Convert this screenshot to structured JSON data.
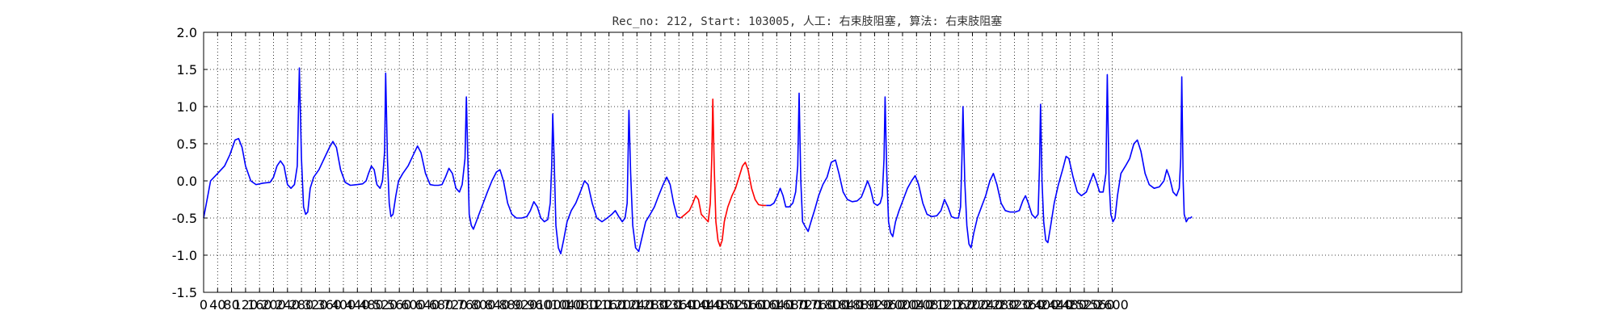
{
  "chart_data": {
    "type": "line",
    "title": "Rec_no: 212, Start: 103005, 人工: 右束肢阻塞, 算法: 右束肢阻塞",
    "xlabel": "",
    "ylabel": "",
    "xlim": [
      0,
      3600
    ],
    "ylim": [
      -1.5,
      2.0
    ],
    "grid": true,
    "yticks": [
      "2.0",
      "1.5",
      "1.0",
      "0.5",
      "0.0",
      "-0.5",
      "-1.0",
      "-1.5"
    ],
    "xtick_labels": [
      "0",
      "40",
      "80",
      "120",
      "160",
      "200",
      "240",
      "280",
      "320",
      "360",
      "400",
      "440",
      "480",
      "520",
      "560",
      "600",
      "640",
      "680",
      "720",
      "760",
      "800",
      "840",
      "880",
      "920",
      "960",
      "1000",
      "1040",
      "1080",
      "1120",
      "1160",
      "1200",
      "1240",
      "1280",
      "1320",
      "1360",
      "1400",
      "1440",
      "1480",
      "1520",
      "1560",
      "1600",
      "1640",
      "1680",
      "1720",
      "1760",
      "1800",
      "1840",
      "1880",
      "1920",
      "1960",
      "2000",
      "2040",
      "2080",
      "2120",
      "2160",
      "2200",
      "2240",
      "2280",
      "2320",
      "2360",
      "2400",
      "2440",
      "2480",
      "2520",
      "2560",
      "2600"
    ],
    "colors": {
      "normal": "#0000ff",
      "highlight": "#ff0000"
    },
    "series": [
      {
        "color": "blue",
        "points": [
          [
            0,
            -0.5
          ],
          [
            12,
            -0.2
          ],
          [
            20,
            0.0
          ],
          [
            40,
            0.1
          ],
          [
            60,
            0.2
          ],
          [
            75,
            0.35
          ],
          [
            90,
            0.55
          ],
          [
            100,
            0.57
          ],
          [
            110,
            0.45
          ],
          [
            120,
            0.2
          ],
          [
            135,
            0.0
          ],
          [
            150,
            -0.05
          ],
          [
            170,
            -0.03
          ],
          [
            190,
            -0.02
          ],
          [
            200,
            0.05
          ],
          [
            210,
            0.2
          ],
          [
            220,
            0.27
          ],
          [
            230,
            0.2
          ],
          [
            240,
            -0.05
          ],
          [
            250,
            -0.1
          ],
          [
            260,
            -0.05
          ],
          [
            268,
            0.2
          ],
          [
            274,
            1.52
          ],
          [
            280,
            0.3
          ],
          [
            286,
            -0.35
          ],
          [
            292,
            -0.45
          ],
          [
            298,
            -0.42
          ],
          [
            305,
            -0.1
          ],
          [
            315,
            0.05
          ],
          [
            330,
            0.15
          ],
          [
            345,
            0.3
          ],
          [
            360,
            0.45
          ],
          [
            370,
            0.53
          ],
          [
            380,
            0.45
          ],
          [
            392,
            0.15
          ],
          [
            405,
            -0.02
          ],
          [
            420,
            -0.06
          ],
          [
            440,
            -0.05
          ],
          [
            455,
            -0.04
          ],
          [
            465,
            0.0
          ],
          [
            472,
            0.1
          ],
          [
            480,
            0.2
          ],
          [
            488,
            0.15
          ],
          [
            496,
            -0.05
          ],
          [
            505,
            -0.1
          ],
          [
            512,
            0.0
          ],
          [
            518,
            0.4
          ],
          [
            521,
            1.45
          ],
          [
            526,
            0.3
          ],
          [
            531,
            -0.3
          ],
          [
            536,
            -0.48
          ],
          [
            542,
            -0.45
          ],
          [
            550,
            -0.2
          ],
          [
            558,
            0.0
          ],
          [
            570,
            0.1
          ],
          [
            585,
            0.2
          ],
          [
            600,
            0.35
          ],
          [
            612,
            0.47
          ],
          [
            622,
            0.38
          ],
          [
            635,
            0.1
          ],
          [
            648,
            -0.05
          ],
          [
            660,
            -0.06
          ],
          [
            672,
            -0.06
          ],
          [
            682,
            -0.05
          ],
          [
            692,
            0.05
          ],
          [
            702,
            0.17
          ],
          [
            712,
            0.1
          ],
          [
            722,
            -0.1
          ],
          [
            732,
            -0.15
          ],
          [
            740,
            -0.05
          ],
          [
            748,
            0.3
          ],
          [
            752,
            1.13
          ],
          [
            756,
            0.3
          ],
          [
            760,
            -0.45
          ],
          [
            766,
            -0.6
          ],
          [
            772,
            -0.65
          ],
          [
            780,
            -0.55
          ],
          [
            788,
            -0.45
          ],
          [
            800,
            -0.3
          ],
          [
            812,
            -0.15
          ],
          [
            825,
            0.0
          ],
          [
            838,
            0.12
          ],
          [
            848,
            0.15
          ],
          [
            858,
            0.0
          ],
          [
            870,
            -0.3
          ],
          [
            882,
            -0.45
          ],
          [
            895,
            -0.5
          ],
          [
            910,
            -0.5
          ],
          [
            925,
            -0.48
          ],
          [
            935,
            -0.4
          ],
          [
            945,
            -0.28
          ],
          [
            955,
            -0.35
          ],
          [
            965,
            -0.5
          ],
          [
            975,
            -0.55
          ],
          [
            985,
            -0.52
          ],
          [
            992,
            -0.3
          ],
          [
            996,
            0.2
          ],
          [
            999,
            0.9
          ],
          [
            1003,
            0.3
          ],
          [
            1008,
            -0.6
          ],
          [
            1015,
            -0.9
          ],
          [
            1022,
            -0.98
          ],
          [
            1030,
            -0.8
          ],
          [
            1040,
            -0.55
          ],
          [
            1052,
            -0.4
          ],
          [
            1065,
            -0.3
          ],
          [
            1078,
            -0.15
          ],
          [
            1090,
            0.0
          ],
          [
            1100,
            -0.05
          ],
          [
            1112,
            -0.3
          ],
          [
            1125,
            -0.5
          ],
          [
            1140,
            -0.55
          ],
          [
            1155,
            -0.5
          ],
          [
            1168,
            -0.45
          ],
          [
            1178,
            -0.4
          ],
          [
            1188,
            -0.48
          ],
          [
            1198,
            -0.55
          ],
          [
            1206,
            -0.5
          ],
          [
            1212,
            -0.3
          ],
          [
            1217,
            0.95
          ],
          [
            1222,
            0.1
          ],
          [
            1228,
            -0.6
          ],
          [
            1236,
            -0.9
          ],
          [
            1245,
            -0.95
          ],
          [
            1255,
            -0.75
          ],
          [
            1265,
            -0.55
          ],
          [
            1278,
            -0.45
          ],
          [
            1290,
            -0.35
          ],
          [
            1302,
            -0.2
          ],
          [
            1315,
            -0.05
          ],
          [
            1325,
            0.05
          ],
          [
            1335,
            -0.05
          ],
          [
            1345,
            -0.3
          ],
          [
            1355,
            -0.48
          ],
          [
            1365,
            -0.5
          ]
        ]
      },
      {
        "color": "red",
        "points": [
          [
            1365,
            -0.5
          ],
          [
            1378,
            -0.45
          ],
          [
            1390,
            -0.4
          ],
          [
            1400,
            -0.3
          ],
          [
            1408,
            -0.2
          ],
          [
            1416,
            -0.25
          ],
          [
            1424,
            -0.45
          ],
          [
            1434,
            -0.5
          ],
          [
            1444,
            -0.55
          ],
          [
            1450,
            -0.3
          ],
          [
            1454,
            0.3
          ],
          [
            1457,
            1.1
          ],
          [
            1461,
            0.2
          ],
          [
            1466,
            -0.55
          ],
          [
            1472,
            -0.8
          ],
          [
            1478,
            -0.88
          ],
          [
            1484,
            -0.8
          ],
          [
            1490,
            -0.55
          ],
          [
            1500,
            -0.35
          ],
          [
            1512,
            -0.2
          ],
          [
            1522,
            -0.1
          ],
          [
            1532,
            0.05
          ],
          [
            1542,
            0.2
          ],
          [
            1550,
            0.25
          ],
          [
            1558,
            0.15
          ],
          [
            1568,
            -0.1
          ],
          [
            1578,
            -0.25
          ],
          [
            1588,
            -0.32
          ],
          [
            1598,
            -0.33
          ],
          [
            1610,
            -0.33
          ]
        ]
      },
      {
        "color": "blue",
        "points": [
          [
            1610,
            -0.33
          ],
          [
            1622,
            -0.33
          ],
          [
            1632,
            -0.3
          ],
          [
            1642,
            -0.2
          ],
          [
            1650,
            -0.1
          ],
          [
            1658,
            -0.2
          ],
          [
            1666,
            -0.35
          ],
          [
            1676,
            -0.35
          ],
          [
            1686,
            -0.3
          ],
          [
            1694,
            -0.15
          ],
          [
            1700,
            0.2
          ],
          [
            1704,
            1.18
          ],
          [
            1709,
            0.0
          ],
          [
            1714,
            -0.55
          ],
          [
            1722,
            -0.62
          ],
          [
            1730,
            -0.68
          ],
          [
            1738,
            -0.55
          ],
          [
            1748,
            -0.4
          ],
          [
            1760,
            -0.2
          ],
          [
            1772,
            -0.05
          ],
          [
            1784,
            0.05
          ],
          [
            1796,
            0.25
          ],
          [
            1808,
            0.28
          ],
          [
            1818,
            0.1
          ],
          [
            1830,
            -0.15
          ],
          [
            1842,
            -0.25
          ],
          [
            1856,
            -0.28
          ],
          [
            1870,
            -0.27
          ],
          [
            1882,
            -0.22
          ],
          [
            1892,
            -0.1
          ],
          [
            1900,
            0.0
          ],
          [
            1908,
            -0.1
          ],
          [
            1918,
            -0.3
          ],
          [
            1928,
            -0.33
          ],
          [
            1936,
            -0.3
          ],
          [
            1942,
            -0.2
          ],
          [
            1947,
            0.3
          ],
          [
            1950,
            1.13
          ],
          [
            1955,
            0.1
          ],
          [
            1960,
            -0.55
          ],
          [
            1966,
            -0.7
          ],
          [
            1972,
            -0.75
          ],
          [
            1980,
            -0.55
          ],
          [
            1990,
            -0.4
          ],
          [
            2002,
            -0.25
          ],
          [
            2014,
            -0.1
          ],
          [
            2026,
            0.0
          ],
          [
            2036,
            0.07
          ],
          [
            2046,
            -0.05
          ],
          [
            2058,
            -0.3
          ],
          [
            2070,
            -0.45
          ],
          [
            2084,
            -0.48
          ],
          [
            2098,
            -0.47
          ],
          [
            2110,
            -0.4
          ],
          [
            2120,
            -0.25
          ],
          [
            2130,
            -0.35
          ],
          [
            2140,
            -0.48
          ],
          [
            2150,
            -0.5
          ],
          [
            2160,
            -0.5
          ],
          [
            2166,
            -0.35
          ],
          [
            2170,
            0.3
          ],
          [
            2173,
            1.0
          ],
          [
            2178,
            0.0
          ],
          [
            2184,
            -0.6
          ],
          [
            2190,
            -0.85
          ],
          [
            2196,
            -0.9
          ],
          [
            2204,
            -0.7
          ],
          [
            2214,
            -0.5
          ],
          [
            2226,
            -0.35
          ],
          [
            2238,
            -0.2
          ],
          [
            2250,
            0.0
          ],
          [
            2260,
            0.1
          ],
          [
            2270,
            -0.05
          ],
          [
            2282,
            -0.3
          ],
          [
            2294,
            -0.4
          ],
          [
            2308,
            -0.42
          ],
          [
            2322,
            -0.42
          ],
          [
            2334,
            -0.4
          ],
          [
            2344,
            -0.27
          ],
          [
            2352,
            -0.2
          ],
          [
            2360,
            -0.3
          ],
          [
            2370,
            -0.45
          ],
          [
            2380,
            -0.5
          ],
          [
            2388,
            -0.45
          ],
          [
            2392,
            0.2
          ],
          [
            2395,
            1.03
          ],
          [
            2399,
            0.0
          ],
          [
            2404,
            -0.55
          ],
          [
            2410,
            -0.8
          ],
          [
            2416,
            -0.83
          ],
          [
            2424,
            -0.6
          ],
          [
            2434,
            -0.3
          ],
          [
            2446,
            -0.05
          ],
          [
            2458,
            0.15
          ],
          [
            2468,
            0.33
          ],
          [
            2476,
            0.3
          ],
          [
            2488,
            0.05
          ],
          [
            2500,
            -0.15
          ],
          [
            2512,
            -0.2
          ],
          [
            2526,
            -0.15
          ],
          [
            2538,
            0.0
          ],
          [
            2546,
            0.1
          ],
          [
            2554,
            0.0
          ],
          [
            2564,
            -0.15
          ],
          [
            2574,
            -0.15
          ],
          [
            2582,
            0.1
          ],
          [
            2586,
            1.43
          ],
          [
            2591,
            0.0
          ],
          [
            2596,
            -0.45
          ],
          [
            2602,
            -0.55
          ],
          [
            2608,
            -0.5
          ],
          [
            2615,
            -0.2
          ],
          [
            2625,
            0.1
          ],
          [
            2638,
            0.2
          ],
          [
            2650,
            0.3
          ],
          [
            2662,
            0.5
          ],
          [
            2672,
            0.55
          ],
          [
            2682,
            0.4
          ],
          [
            2694,
            0.1
          ],
          [
            2706,
            -0.05
          ],
          [
            2720,
            -0.1
          ],
          [
            2735,
            -0.08
          ],
          [
            2748,
            0.0
          ],
          [
            2756,
            0.15
          ],
          [
            2764,
            0.05
          ],
          [
            2774,
            -0.15
          ],
          [
            2784,
            -0.2
          ],
          [
            2792,
            -0.1
          ],
          [
            2796,
            0.3
          ],
          [
            2799,
            1.4
          ],
          [
            2803,
            0.0
          ],
          [
            2806,
            -0.45
          ],
          [
            2812,
            -0.55
          ],
          [
            2818,
            -0.5
          ],
          [
            2824,
            -0.5
          ],
          [
            2828,
            -0.48
          ]
        ]
      }
    ]
  }
}
